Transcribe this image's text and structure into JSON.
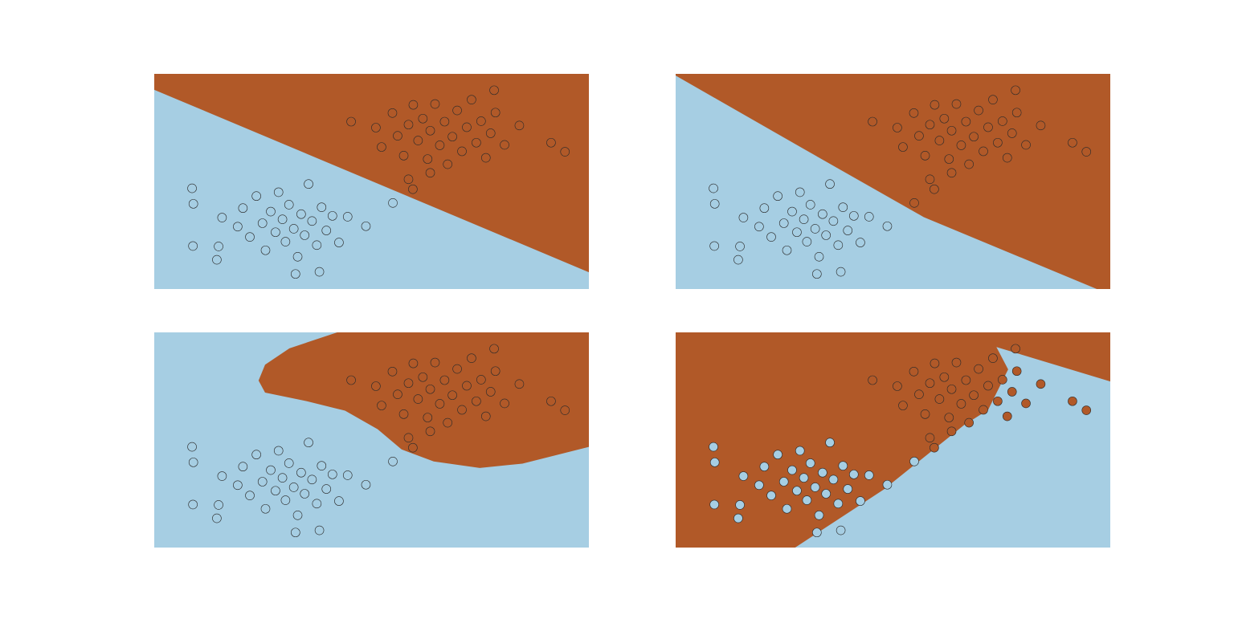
{
  "chart_data": {
    "type": "scatter",
    "xlim": [
      0,
      100
    ],
    "ylim": [
      0,
      50
    ],
    "series": [
      {
        "color": "#a6cee3",
        "x": [
          8.7,
          9,
          14.8,
          15.6,
          19.2,
          20.4,
          22,
          23.5,
          24.9,
          25.6,
          26.8,
          27.9,
          28.6,
          29.5,
          30.2,
          31,
          32.1,
          33,
          33.8,
          34.6,
          35.5,
          36.3,
          37.4,
          38.5,
          39.6,
          41,
          42.5,
          44.5,
          48.7,
          54.9,
          38,
          14.4,
          8.9,
          32.5
        ],
        "values": [
          23.4,
          19.8,
          9.9,
          16.6,
          14.5,
          18.8,
          12.1,
          21.6,
          15.3,
          9,
          18,
          13.2,
          22.5,
          16.2,
          11,
          19.6,
          14,
          7.5,
          17.4,
          12.5,
          24.4,
          15.8,
          10.2,
          19,
          13.6,
          17,
          10.8,
          16.8,
          14.6,
          20,
          4,
          6.8,
          10,
          3.5
        ]
      },
      {
        "color": "#b15928",
        "x": [
          45.3,
          51,
          52.3,
          54.8,
          56,
          57.4,
          58.5,
          59.6,
          60.7,
          61.8,
          62.9,
          63.5,
          64.6,
          65.7,
          66.8,
          67.5,
          68.6,
          69.7,
          70.8,
          71.9,
          73,
          74.1,
          75.2,
          76.3,
          77.4,
          78.5,
          80.6,
          84,
          91.3,
          94.5,
          78.2,
          58.5,
          59.5,
          63.5
        ],
        "values": [
          38.9,
          37.5,
          33,
          40.9,
          35.6,
          31,
          38.2,
          42.8,
          34.5,
          39.6,
          30.2,
          36.8,
          43,
          33.4,
          38.9,
          29,
          35.4,
          41.5,
          32,
          37.6,
          44,
          34,
          39,
          30.5,
          36.2,
          41,
          33.5,
          38,
          34,
          31.9,
          46.2,
          25.5,
          23.2,
          27
        ]
      }
    ],
    "panels": [
      {
        "background": "#a6cee3",
        "filled": false,
        "region": {
          "color": "#b15928",
          "x": [
            0,
            100,
            100,
            0
          ],
          "y": [
            50,
            50,
            3.9,
            46.3
          ]
        }
      },
      {
        "background": "#a6cee3",
        "filled": false,
        "region": {
          "color": "#b15928",
          "x": [
            0,
            29.4,
            57.1,
            96.9,
            100,
            100,
            0
          ],
          "y": [
            49.6,
            32.6,
            16.7,
            0,
            0,
            50,
            50
          ]
        }
      },
      {
        "background": "#a6cee3",
        "filled": false,
        "region": {
          "color": "#b15928",
          "x": [
            42.1,
            100,
            100,
            84.7,
            74.9,
            64.3,
            56.9,
            51.4,
            43.9,
            34.7,
            25.5,
            24,
            25.5,
            31.1
          ],
          "y": [
            50,
            50,
            23.4,
            19.5,
            18.5,
            20,
            22.8,
            27.5,
            31.8,
            34.1,
            36,
            38.8,
            42.5,
            46.3
          ]
        }
      },
      {
        "background": "#b15928",
        "filled": true,
        "region": {
          "color": "#a6cee3",
          "x": [
            27.5,
            47.9,
            66.4,
            71.9,
            76.5,
            73.8,
            100,
            100
          ],
          "y": [
            0,
            13.5,
            28.5,
            32,
            41.4,
            46.6,
            38.6,
            0
          ]
        }
      }
    ]
  }
}
